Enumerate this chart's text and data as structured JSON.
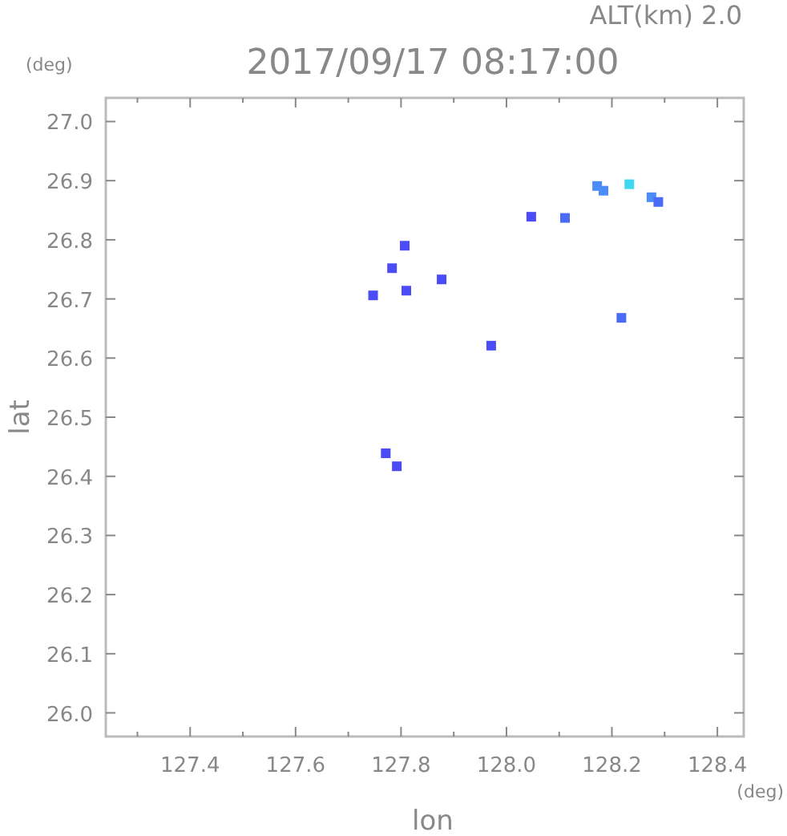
{
  "chart_data": {
    "type": "scatter",
    "title": "2017/09/17 08:17:00",
    "xlabel": "lon",
    "ylabel": "lat",
    "annotations": [
      "ALT(km) 2.0",
      "(deg)",
      "(deg)"
    ],
    "x": [
      127.807,
      127.783,
      127.747,
      127.81,
      127.877,
      127.971,
      128.047,
      128.111,
      128.172,
      128.184,
      128.233,
      128.275,
      128.288,
      128.218,
      127.771,
      127.792
    ],
    "values": [
      26.79,
      26.752,
      26.706,
      26.714,
      26.733,
      26.621,
      26.839,
      26.837,
      26.891,
      26.883,
      26.894,
      26.872,
      26.864,
      26.668,
      26.439,
      26.417
    ],
    "colors": [
      "#4b4bf8",
      "#4b4bf8",
      "#4b4bf8",
      "#4b4bf8",
      "#4b4bf8",
      "#4b4bf8",
      "#4b4bf8",
      "#4b6af8",
      "#4b8cf8",
      "#4b8cf8",
      "#40d8f0",
      "#4b8cf8",
      "#4b6af8",
      "#4b6af8",
      "#4b4bf8",
      "#4b4bf8"
    ],
    "marker": "square",
    "xlim": [
      127.24,
      128.45
    ],
    "ylim": [
      25.96,
      27.04
    ],
    "xticks": [
      {
        "value": 127.3,
        "label": null
      },
      127.4,
      {
        "value": 127.5,
        "label": null
      },
      127.6,
      {
        "value": 127.7,
        "label": null
      },
      127.8,
      {
        "value": 127.9,
        "label": null
      },
      {
        "value": 128.0,
        "label": "128.0"
      },
      {
        "value": 128.1,
        "label": null
      },
      128.2,
      {
        "value": 128.3,
        "label": null
      },
      128.4
    ],
    "yticks": [
      {
        "value": 26.0,
        "label": "26.0"
      },
      26.1,
      26.2,
      26.3,
      26.4,
      26.5,
      26.6,
      26.7,
      26.8,
      26.9,
      {
        "value": 27.0,
        "label": "27.0"
      }
    ],
    "grid": false
  }
}
